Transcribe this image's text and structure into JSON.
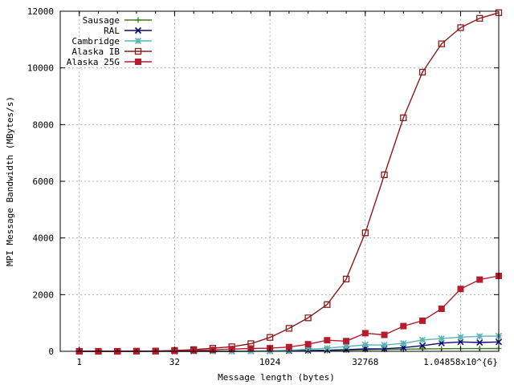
{
  "chart_data": {
    "type": "line",
    "title": "",
    "xlabel": "Message length (bytes)",
    "ylabel": "MPI Message Bandwidth (MBytes/s)",
    "xscale": "log2",
    "xlim": [
      0.5,
      4194304
    ],
    "ylim": [
      0,
      12000
    ],
    "grid": true,
    "legend": "top-left",
    "x_ticks": [
      {
        "value": 1,
        "label": "1"
      },
      {
        "value": 32,
        "label": "32"
      },
      {
        "value": 1024,
        "label": "1024"
      },
      {
        "value": 32768,
        "label": "32768"
      },
      {
        "value": 1048576,
        "label": "1.04858x10^{6}"
      }
    ],
    "y_ticks": [
      {
        "value": 0,
        "label": "0"
      },
      {
        "value": 2000,
        "label": "2000"
      },
      {
        "value": 4000,
        "label": "4000"
      },
      {
        "value": 6000,
        "label": "6000"
      },
      {
        "value": 8000,
        "label": "8000"
      },
      {
        "value": 10000,
        "label": "10000"
      },
      {
        "value": 12000,
        "label": "12000"
      }
    ],
    "x": [
      1,
      2,
      4,
      8,
      16,
      32,
      64,
      128,
      256,
      512,
      1024,
      2048,
      4096,
      8192,
      16384,
      32768,
      65536,
      131072,
      262144,
      524288,
      1048576,
      2097152,
      4194304
    ],
    "series": [
      {
        "name": "Sausage",
        "color": "#3a7d1c",
        "marker": "plus",
        "values": [
          0,
          0,
          0,
          0,
          0,
          0,
          0,
          0,
          1,
          2,
          4,
          8,
          15,
          25,
          40,
          55,
          65,
          75,
          85,
          90,
          95,
          97,
          100
        ]
      },
      {
        "name": "RAL",
        "color": "#0b0b6e",
        "marker": "cross",
        "values": [
          0,
          0,
          0,
          0,
          0,
          0,
          0,
          1,
          2,
          4,
          8,
          15,
          25,
          40,
          60,
          85,
          90,
          130,
          200,
          290,
          330,
          310,
          330
        ]
      },
      {
        "name": "Cambridge",
        "color": "#5ab4b4",
        "marker": "star",
        "values": [
          0,
          0,
          0,
          0,
          0,
          0,
          1,
          2,
          5,
          10,
          20,
          40,
          70,
          110,
          170,
          230,
          220,
          280,
          400,
          450,
          500,
          530,
          540
        ]
      },
      {
        "name": "Alaska IB",
        "color": "#8b1a1a",
        "marker": "open-square",
        "values": [
          0,
          0,
          0,
          5,
          10,
          30,
          60,
          110,
          160,
          270,
          490,
          810,
          1180,
          1650,
          2550,
          4180,
          6230,
          8240,
          9850,
          10850,
          11420,
          11750,
          11950
        ]
      },
      {
        "name": "Alaska 25G",
        "color": "#b71c2c",
        "marker": "filled-square",
        "values": [
          0,
          0,
          0,
          0,
          5,
          15,
          30,
          50,
          80,
          100,
          110,
          150,
          250,
          390,
          360,
          640,
          580,
          890,
          1080,
          1500,
          2200,
          2530,
          2660
        ]
      }
    ]
  }
}
